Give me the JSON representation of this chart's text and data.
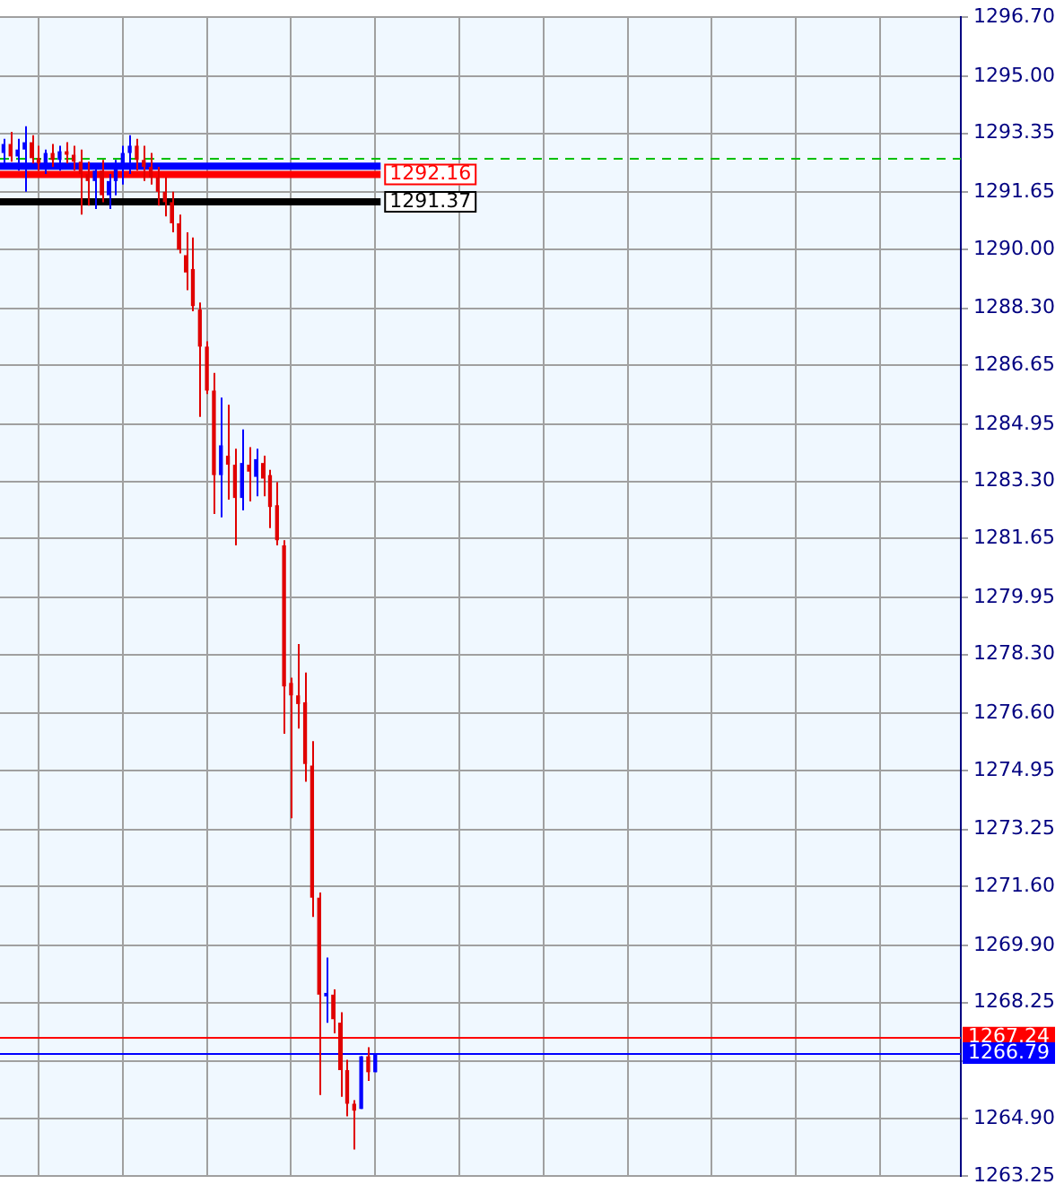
{
  "chart_data": {
    "type": "candlestick",
    "categories": [
      null,
      null,
      null,
      null,
      null,
      null,
      null,
      null,
      null,
      null,
      null,
      null,
      null,
      null,
      null,
      null,
      null,
      null,
      null,
      null,
      null,
      null,
      null,
      null,
      null,
      null,
      null,
      null,
      null,
      null,
      null,
      null,
      null,
      null,
      null,
      null,
      null,
      null,
      null,
      null,
      null,
      null,
      null,
      null,
      null,
      null,
      null,
      null,
      null,
      null,
      null,
      null,
      null,
      null,
      null,
      null,
      null,
      null,
      null,
      null,
      null,
      null,
      null,
      null,
      null,
      null,
      null,
      null,
      null,
      null,
      null,
      null,
      null,
      null,
      null,
      null,
      null,
      null,
      null,
      null,
      null,
      null,
      null,
      null,
      null,
      null,
      null,
      null,
      null,
      null,
      null,
      null,
      null,
      null,
      null,
      null,
      null,
      null,
      null,
      null,
      null,
      null,
      null,
      null,
      null,
      null,
      null,
      null,
      null,
      null,
      null,
      null,
      null,
      null,
      null,
      null,
      null,
      null,
      null,
      null,
      null,
      null,
      null,
      null,
      null,
      null,
      null,
      null,
      null,
      null,
      null,
      null,
      null,
      null,
      null,
      null,
      null
    ],
    "ohlc": [
      [
        1292.78,
        1293.19,
        1292.38,
        1293.04
      ],
      [
        1293.04,
        1293.39,
        1292.53,
        1292.68
      ],
      [
        1292.68,
        1293.19,
        1292.27,
        1292.88
      ],
      [
        1292.88,
        1293.55,
        1291.66,
        1293.09
      ],
      [
        1293.09,
        1293.29,
        1292.48,
        1292.63
      ],
      [
        1292.63,
        1292.99,
        1292.27,
        1292.48
      ],
      [
        1292.48,
        1292.88,
        1292.17,
        1292.78
      ],
      [
        1292.78,
        1293.04,
        1292.38,
        1292.58
      ],
      [
        1292.58,
        1292.99,
        1292.27,
        1292.83
      ],
      [
        1292.83,
        1293.09,
        1292.48,
        1292.73
      ],
      [
        1292.73,
        1292.99,
        1292.27,
        1292.53
      ],
      [
        1292.53,
        1292.88,
        1291.0,
        1292.17
      ],
      [
        1292.17,
        1292.53,
        1291.26,
        1291.97
      ],
      [
        1291.97,
        1292.48,
        1291.16,
        1292.27
      ],
      [
        1292.27,
        1292.58,
        1291.36,
        1291.56
      ],
      [
        1291.56,
        1292.17,
        1291.16,
        1291.97
      ],
      [
        1291.97,
        1292.58,
        1291.56,
        1292.38
      ],
      [
        1292.38,
        1292.99,
        1291.87,
        1292.78
      ],
      [
        1292.78,
        1293.29,
        1292.17,
        1292.99
      ],
      [
        1292.99,
        1293.19,
        1292.27,
        1292.58
      ],
      [
        1292.58,
        1292.99,
        1291.97,
        1292.38
      ],
      [
        1292.38,
        1292.78,
        1291.87,
        1292.07
      ],
      [
        1292.07,
        1292.38,
        1291.26,
        1291.66
      ],
      [
        1291.66,
        1292.07,
        1290.95,
        1291.36
      ],
      [
        1291.36,
        1291.66,
        1290.49,
        1290.75
      ],
      [
        1290.75,
        1291.0,
        1289.88,
        1289.99
      ],
      [
        1289.83,
        1290.49,
        1288.82,
        1289.33
      ],
      [
        1289.43,
        1290.34,
        1288.21,
        1288.36
      ],
      [
        1288.26,
        1288.46,
        1285.16,
        1287.19
      ],
      [
        1287.19,
        1287.34,
        1285.82,
        1285.92
      ],
      [
        1285.92,
        1286.43,
        1282.36,
        1283.48
      ],
      [
        1283.48,
        1285.72,
        1282.26,
        1284.34
      ],
      [
        1284.04,
        1285.51,
        1282.77,
        1283.78
      ],
      [
        1283.78,
        1284.24,
        1281.45,
        1282.82
      ],
      [
        1282.82,
        1284.8,
        1282.46,
        1283.83
      ],
      [
        1283.78,
        1284.29,
        1282.72,
        1283.58
      ],
      [
        1283.43,
        1284.24,
        1282.87,
        1283.94
      ],
      [
        1283.83,
        1284.04,
        1282.87,
        1283.38
      ],
      [
        1283.48,
        1283.63,
        1281.95,
        1282.56
      ],
      [
        1282.61,
        1283.28,
        1281.45,
        1281.6
      ],
      [
        1281.45,
        1281.6,
        1276.01,
        1277.38
      ],
      [
        1277.48,
        1277.63,
        1273.57,
        1277.12
      ],
      [
        1277.12,
        1278.6,
        1276.16,
        1276.87
      ],
      [
        1276.92,
        1277.78,
        1274.63,
        1275.14
      ],
      [
        1275.09,
        1275.8,
        1270.72,
        1271.28
      ],
      [
        1271.28,
        1271.43,
        1265.58,
        1268.48
      ],
      [
        1268.43,
        1269.55,
        1267.67,
        1268.53
      ],
      [
        1268.48,
        1268.63,
        1267.36,
        1267.77
      ],
      [
        1267.67,
        1267.97,
        1265.53,
        1266.3
      ],
      [
        1266.3,
        1266.6,
        1264.97,
        1265.33
      ],
      [
        1265.33,
        1265.43,
        1264.01,
        1265.13
      ],
      [
        1265.18,
        1266.7,
        1265.18,
        1266.7
      ],
      [
        1266.7,
        1266.96,
        1265.99,
        1266.24
      ],
      [
        1266.24,
        1266.79,
        1266.24,
        1266.79
      ],
      null,
      null,
      null,
      null,
      null,
      null,
      null,
      null,
      null,
      null,
      null,
      null,
      null,
      null,
      null,
      null,
      null,
      null,
      null,
      null,
      null,
      null,
      null,
      null,
      null,
      null,
      null,
      null,
      null,
      null,
      null,
      null,
      null,
      null,
      null,
      null,
      null,
      null,
      null,
      null,
      null,
      null,
      null,
      null,
      null,
      null,
      null,
      null,
      null,
      null,
      null,
      null,
      null,
      null,
      null,
      null,
      null,
      null,
      null,
      null,
      null,
      null,
      null,
      null,
      null,
      null,
      null,
      null,
      null,
      null,
      null,
      null,
      null,
      null,
      null,
      null,
      null,
      null,
      null,
      null,
      null,
      null,
      null
    ],
    "colors": [
      "#0000ff",
      "#e00000",
      "#0000ff",
      "#0000ff",
      "#e00000",
      "#e00000",
      "#0000ff",
      "#e00000",
      "#0000ff",
      "#e00000",
      "#e00000",
      "#e00000",
      "#e00000",
      "#0000ff",
      "#e00000",
      "#0000ff",
      "#0000ff",
      "#0000ff",
      "#0000ff",
      "#e00000",
      "#e00000",
      "#e00000",
      "#e00000",
      "#e00000",
      "#e00000",
      "#e00000",
      "#e00000",
      "#e00000",
      "#e00000",
      "#e00000",
      "#e00000",
      "#0000ff",
      "#e00000",
      "#e00000",
      "#0000ff",
      "#e00000",
      "#0000ff",
      "#e00000",
      "#e00000",
      "#e00000",
      "#e00000",
      "#e00000",
      "#e00000",
      "#e00000",
      "#e00000",
      "#e00000",
      "#0000ff",
      "#e00000",
      "#e00000",
      "#e00000",
      "#e00000",
      "#0000ff",
      "#e00000",
      "#0000ff",
      null,
      null,
      null,
      null,
      null,
      null,
      null,
      null,
      null,
      null,
      null,
      null,
      null,
      null,
      null,
      null,
      null,
      null,
      null,
      null,
      null,
      null,
      null,
      null,
      null,
      null,
      null,
      null,
      null,
      null,
      null,
      null,
      null,
      null,
      null,
      null,
      null,
      null,
      null,
      null,
      null,
      null,
      null,
      null,
      null,
      null,
      null,
      null,
      null,
      null,
      null,
      null,
      null,
      null,
      null,
      null,
      null,
      null,
      null,
      null,
      null,
      null,
      null,
      null,
      null,
      null,
      null,
      null,
      null,
      null,
      null,
      null,
      null,
      null,
      null,
      null,
      null,
      null,
      null,
      null,
      null,
      null,
      null
    ],
    "ylim": [
      1263.25,
      1296.7
    ],
    "yticks": [
      {
        "value": 1296.7,
        "label": "1296.70"
      },
      {
        "value": 1295.0,
        "label": "1295.00"
      },
      {
        "value": 1293.35,
        "label": "1293.35"
      },
      {
        "value": 1291.65,
        "label": "1291.65"
      },
      {
        "value": 1290.0,
        "label": "1290.00"
      },
      {
        "value": 1288.3,
        "label": "1288.30"
      },
      {
        "value": 1286.65,
        "label": "1286.65"
      },
      {
        "value": 1284.95,
        "label": "1284.95"
      },
      {
        "value": 1283.3,
        "label": "1283.30"
      },
      {
        "value": 1281.65,
        "label": "1281.65"
      },
      {
        "value": 1279.95,
        "label": "1279.95"
      },
      {
        "value": 1278.3,
        "label": "1278.30"
      },
      {
        "value": 1276.6,
        "label": "1276.60"
      },
      {
        "value": 1274.95,
        "label": "1274.95"
      },
      {
        "value": 1273.25,
        "label": "1273.25"
      },
      {
        "value": 1271.6,
        "label": "1271.60"
      },
      {
        "value": 1269.9,
        "label": "1269.90"
      },
      {
        "value": 1268.25,
        "label": "1268.25"
      },
      {
        "value": 1266.55,
        "label": null
      },
      {
        "value": 1264.9,
        "label": "1264.90"
      },
      {
        "value": 1263.25,
        "label": "1263.25"
      }
    ],
    "ref_lines": [
      {
        "axis": "y",
        "value": 1292.63,
        "label": null,
        "color": "#00c000",
        "line_style": "dashed"
      },
      {
        "axis": "y",
        "value": 1292.4,
        "label": null,
        "color": "#0000ff",
        "line_style": "solid"
      },
      {
        "axis": "y",
        "value": 1292.16,
        "label": "1292.16",
        "color": "#ff0000",
        "line_style": "solid"
      },
      {
        "axis": "y",
        "value": 1291.37,
        "label": "1291.37",
        "color": "#000000",
        "line_style": "solid"
      },
      {
        "axis": "y",
        "value": 1267.24,
        "label": "1267.24",
        "color": "#ff0000",
        "line_style": "solid"
      },
      {
        "axis": "y",
        "value": 1266.79,
        "label": "1266.79",
        "color": "#0000ff",
        "line_style": "solid"
      }
    ],
    "grid": true,
    "legend": false,
    "tick_labels": "y"
  }
}
